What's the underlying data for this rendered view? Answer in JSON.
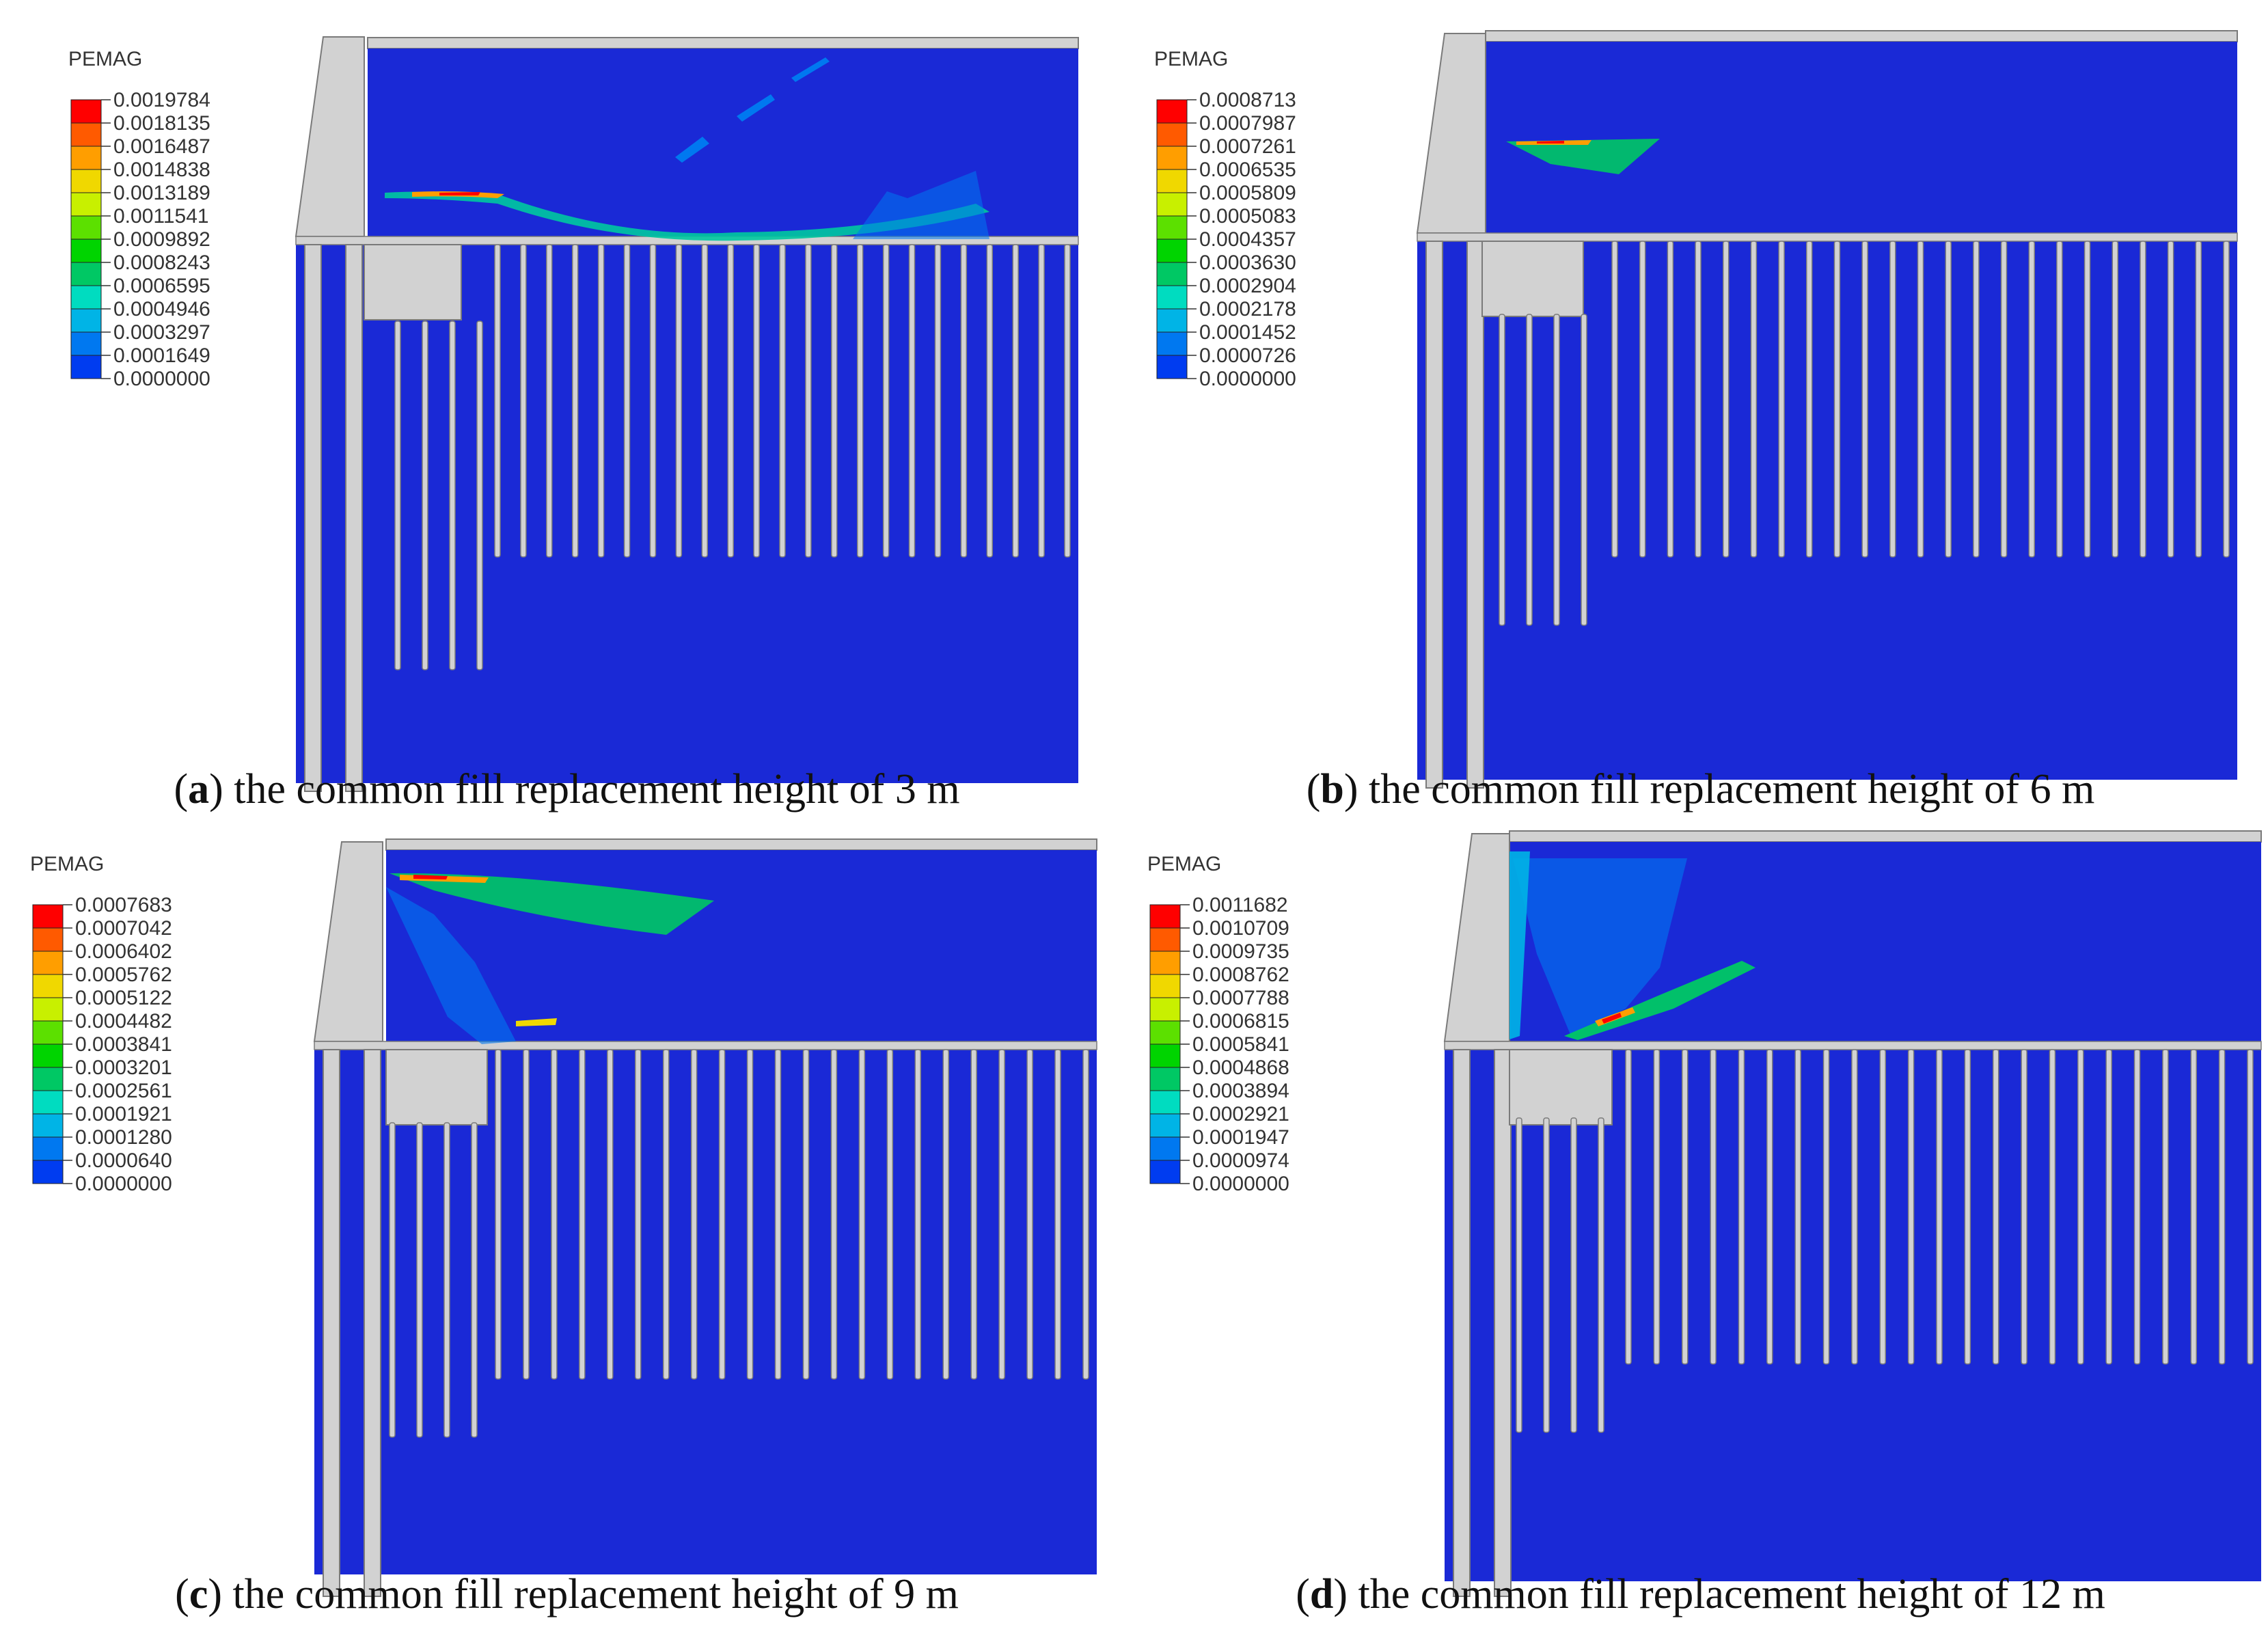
{
  "panels": [
    {
      "letter": "a",
      "caption": "the common fill replacement height of 3 m",
      "legend_title": "PEMAG",
      "legend_values": [
        "0.0019784",
        "0.0018135",
        "0.0016487",
        "0.0014838",
        "0.0013189",
        "0.0011541",
        "0.0009892",
        "0.0008243",
        "0.0006595",
        "0.0004946",
        "0.0003297",
        "0.0001649",
        "0.0000000"
      ]
    },
    {
      "letter": "b",
      "caption": "the common fill replacement height of 6 m",
      "legend_title": "PEMAG",
      "legend_values": [
        "0.0008713",
        "0.0007987",
        "0.0007261",
        "0.0006535",
        "0.0005809",
        "0.0005083",
        "0.0004357",
        "0.0003630",
        "0.0002904",
        "0.0002178",
        "0.0001452",
        "0.0000726",
        "0.0000000"
      ]
    },
    {
      "letter": "c",
      "caption": "the common fill replacement height of 9 m",
      "legend_title": "PEMAG",
      "legend_values": [
        "0.0007683",
        "0.0007042",
        "0.0006402",
        "0.0005762",
        "0.0005122",
        "0.0004482",
        "0.0003841",
        "0.0003201",
        "0.0002561",
        "0.0001921",
        "0.0001280",
        "0.0000640",
        "0.0000000"
      ]
    },
    {
      "letter": "d",
      "caption": "the common fill replacement height of 12 m",
      "legend_title": "PEMAG",
      "legend_values": [
        "0.0011682",
        "0.0010709",
        "0.0009735",
        "0.0008762",
        "0.0007788",
        "0.0006815",
        "0.0005841",
        "0.0004868",
        "0.0003894",
        "0.0002921",
        "0.0001947",
        "0.0000974",
        "0.0000000"
      ]
    }
  ],
  "colors": {
    "contour": [
      "#ff0000",
      "#ff5a00",
      "#ff9e00",
      "#f0d800",
      "#c8f000",
      "#5ce000",
      "#00d400",
      "#00c864",
      "#00dcc0",
      "#00b4e6",
      "#0078f0",
      "#003cf0",
      "#0000ee"
    ],
    "model_blue": "#1a29d6",
    "structure_gray": "#d2d2d2",
    "outline_gray": "#7a7a7a"
  }
}
